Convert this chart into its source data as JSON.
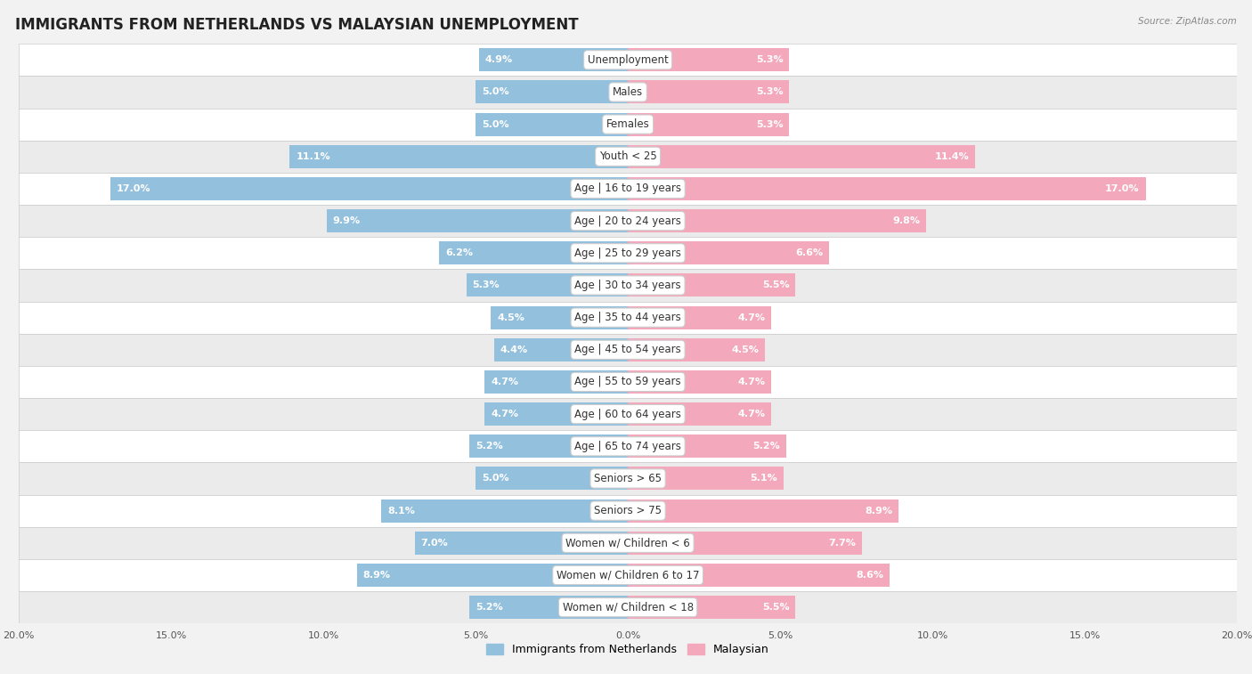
{
  "title": "IMMIGRANTS FROM NETHERLANDS VS MALAYSIAN UNEMPLOYMENT",
  "source": "Source: ZipAtlas.com",
  "categories": [
    "Unemployment",
    "Males",
    "Females",
    "Youth < 25",
    "Age | 16 to 19 years",
    "Age | 20 to 24 years",
    "Age | 25 to 29 years",
    "Age | 30 to 34 years",
    "Age | 35 to 44 years",
    "Age | 45 to 54 years",
    "Age | 55 to 59 years",
    "Age | 60 to 64 years",
    "Age | 65 to 74 years",
    "Seniors > 65",
    "Seniors > 75",
    "Women w/ Children < 6",
    "Women w/ Children 6 to 17",
    "Women w/ Children < 18"
  ],
  "left_values": [
    4.9,
    5.0,
    5.0,
    11.1,
    17.0,
    9.9,
    6.2,
    5.3,
    4.5,
    4.4,
    4.7,
    4.7,
    5.2,
    5.0,
    8.1,
    7.0,
    8.9,
    5.2
  ],
  "right_values": [
    5.3,
    5.3,
    5.3,
    11.4,
    17.0,
    9.8,
    6.6,
    5.5,
    4.7,
    4.5,
    4.7,
    4.7,
    5.2,
    5.1,
    8.9,
    7.7,
    8.6,
    5.5
  ],
  "left_color": "#92c0dd",
  "right_color": "#f4a8bc",
  "left_label": "Immigrants from Netherlands",
  "right_label": "Malaysian",
  "axis_limit": 20.0,
  "row_colors": [
    "#ffffff",
    "#ebebeb"
  ],
  "title_fontsize": 12,
  "label_fontsize": 8.5,
  "value_fontsize": 8.0,
  "tick_fontsize": 8.0
}
